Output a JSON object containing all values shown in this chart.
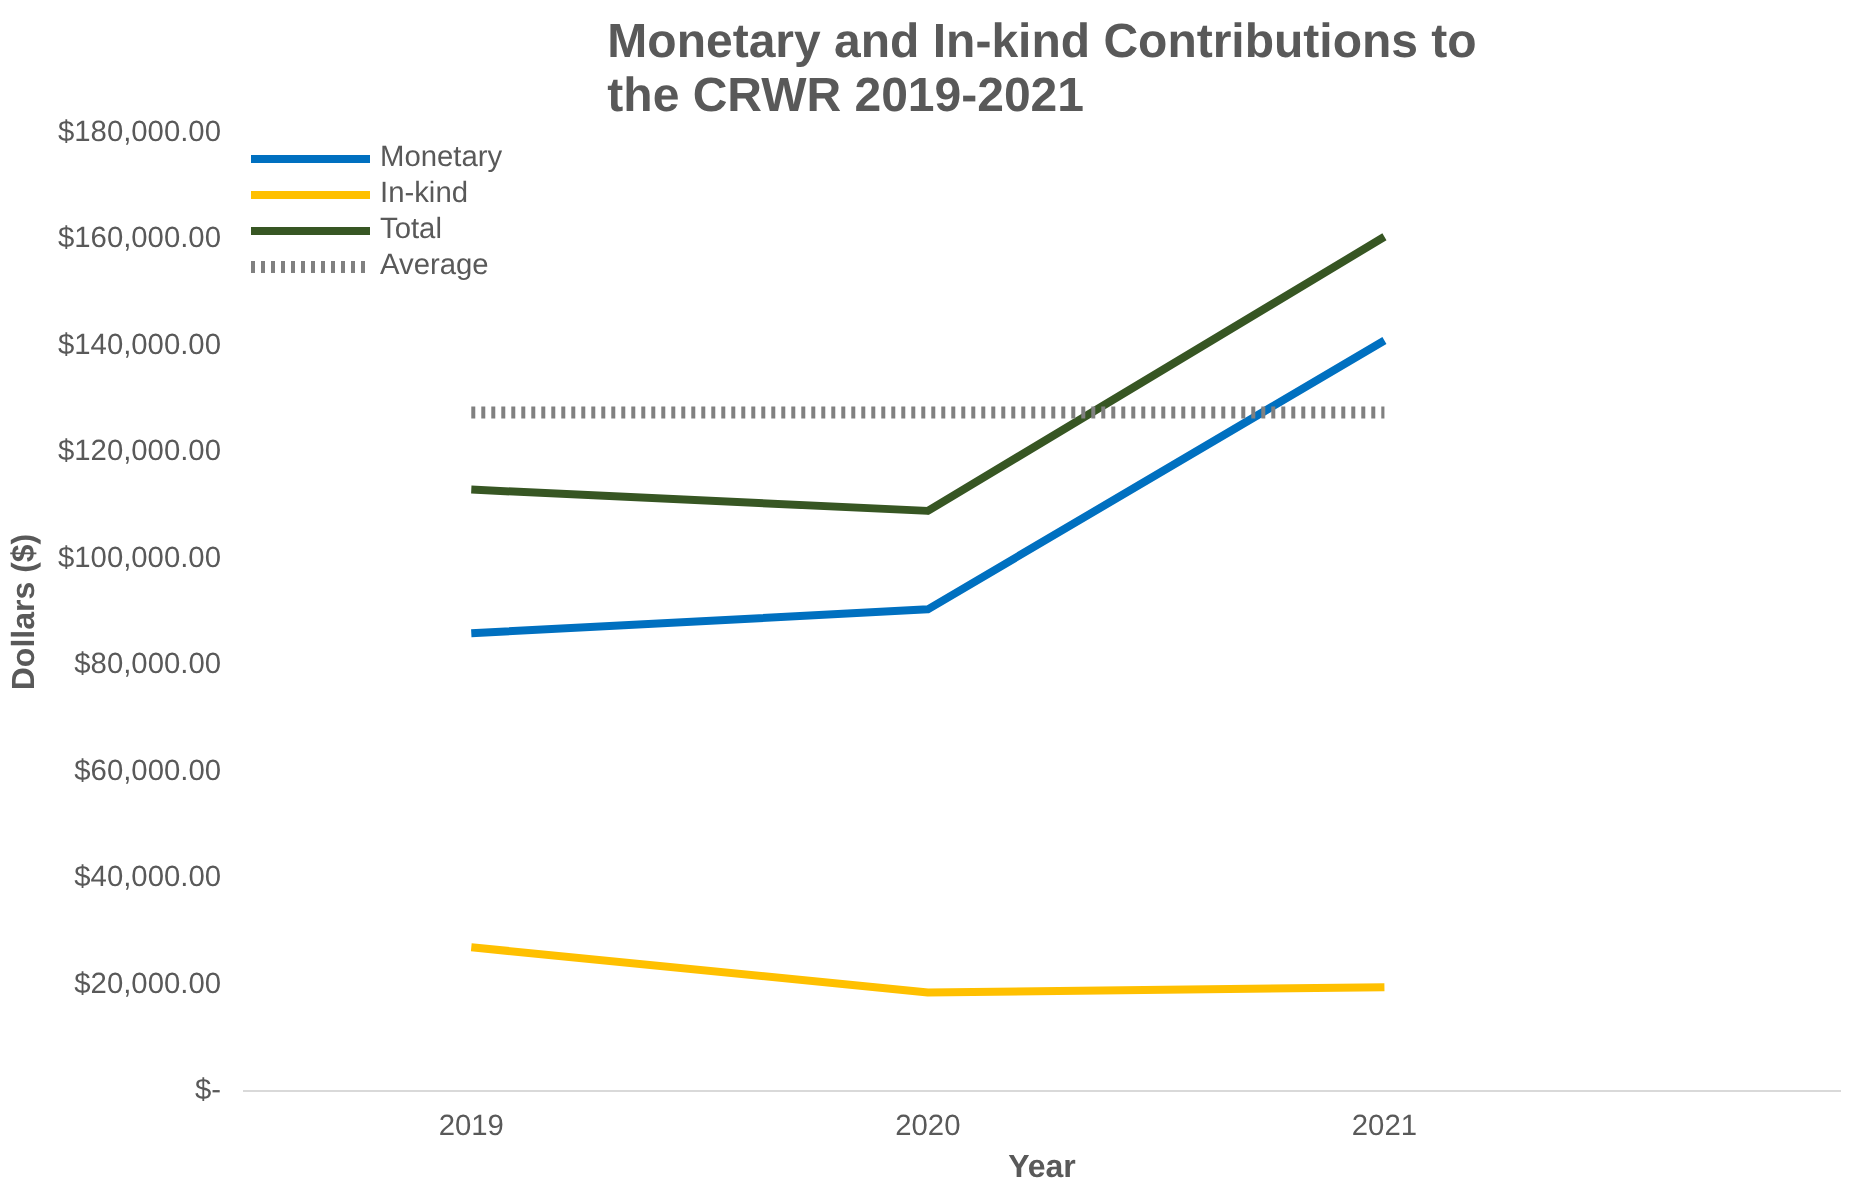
{
  "chart_data": {
    "type": "line",
    "title": "Monetary and In-kind Contributions to the CRWR 2019-2021",
    "xlabel": "Year",
    "ylabel": "Dollars ($)",
    "categories": [
      "2019",
      "2020",
      "2021"
    ],
    "series": [
      {
        "name": "Monetary",
        "color": "#0070c0",
        "values": [
          86000,
          90500,
          141000
        ]
      },
      {
        "name": "In-kind",
        "color": "#ffc000",
        "values": [
          27000,
          18500,
          19500
        ]
      },
      {
        "name": "Total",
        "color": "#375623",
        "values": [
          113000,
          109000,
          160500
        ]
      },
      {
        "name": "Average",
        "color": "#808080",
        "values": [
          127500,
          127500,
          127500
        ],
        "line_style": "dotted"
      }
    ],
    "ylim": [
      0,
      180000
    ],
    "yticks": [
      {
        "value": 0,
        "label": "$-"
      },
      {
        "value": 20000,
        "label": "$20,000.00"
      },
      {
        "value": 40000,
        "label": "$40,000.00"
      },
      {
        "value": 60000,
        "label": "$60,000.00"
      },
      {
        "value": 80000,
        "label": "$80,000.00"
      },
      {
        "value": 100000,
        "label": "$100,000.00"
      },
      {
        "value": 120000,
        "label": "$120,000.00"
      },
      {
        "value": 140000,
        "label": "$140,000.00"
      },
      {
        "value": 160000,
        "label": "$160,000.00"
      },
      {
        "value": 180000,
        "label": "$180,000.00"
      }
    ],
    "grid": false,
    "legend": "top left",
    "line_style": "solid",
    "marker": "none"
  }
}
